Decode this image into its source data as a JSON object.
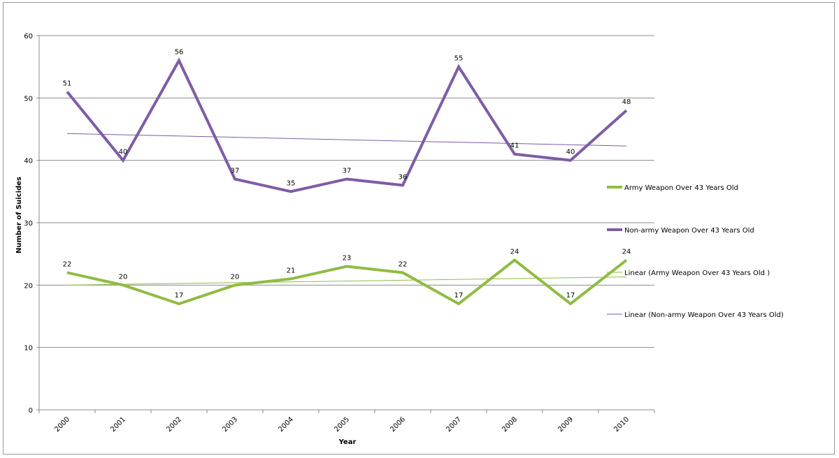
{
  "chart_data": {
    "type": "line",
    "title": "",
    "xlabel": "Year",
    "ylabel": "Number of Suicides",
    "categories": [
      "2000",
      "2001",
      "2002",
      "2003",
      "2004",
      "2005",
      "2006",
      "2007",
      "2008",
      "2009",
      "2010"
    ],
    "ylim": [
      0,
      60
    ],
    "yticks": [
      0,
      10,
      20,
      30,
      40,
      50,
      60
    ],
    "grid": true,
    "legend_position": "right",
    "series": [
      {
        "name": "Army Weapon Over 43 Years Old",
        "color": "#8fbc45",
        "values": [
          22,
          20,
          17,
          20,
          21,
          23,
          22,
          17,
          24,
          17,
          24
        ]
      },
      {
        "name": "Non-army Weapon Over 43 Years Old",
        "color": "#7e5ca6",
        "values": [
          51,
          40,
          56,
          37,
          35,
          37,
          36,
          55,
          41,
          40,
          48
        ]
      }
    ],
    "trendlines": [
      {
        "name": "Linear (Army Weapon Over 43 Years Old )",
        "color": "#8fbc45",
        "start": 20.0,
        "end": 21.3
      },
      {
        "name": "Linear (Non-army Weapon Over 43 Years Old)",
        "color": "#7e5ca6",
        "start": 44.3,
        "end": 42.3
      }
    ]
  }
}
